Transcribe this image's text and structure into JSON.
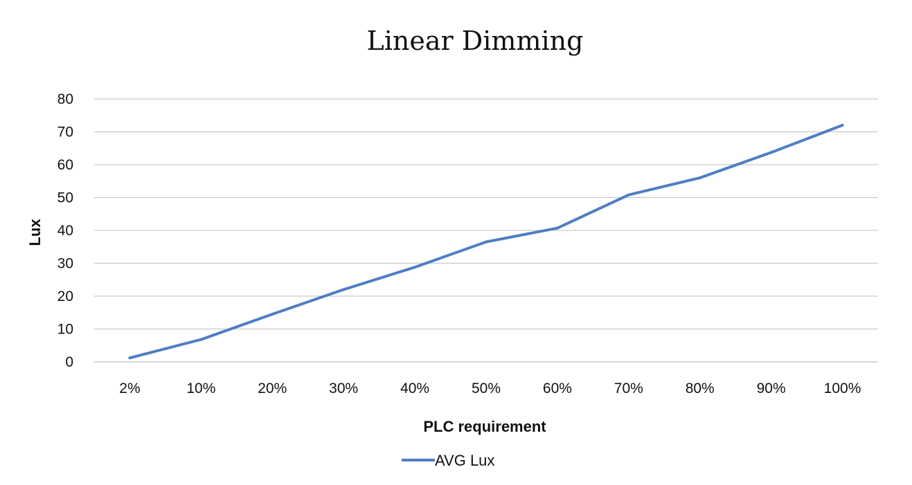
{
  "chart_data": {
    "type": "line",
    "title": "Linear Dimming",
    "xlabel": "PLC requirement",
    "ylabel": "Lux",
    "categories": [
      "2%",
      "10%",
      "20%",
      "30%",
      "40%",
      "50%",
      "60%",
      "70%",
      "80%",
      "90%",
      "100%"
    ],
    "series": [
      {
        "name": "AVG Lux",
        "values": [
          1.2,
          6.8,
          14.5,
          22.0,
          28.8,
          36.5,
          40.7,
          50.8,
          56.0,
          63.7,
          72.0
        ],
        "color": "#4f7ec2"
      }
    ],
    "yticks": [
      "0",
      "10",
      "20",
      "30",
      "40",
      "50",
      "60",
      "70",
      "80"
    ],
    "ylim": [
      0,
      80
    ],
    "grid": true,
    "gridline_color": "#c9c9c9",
    "legend_position": "bottom"
  }
}
